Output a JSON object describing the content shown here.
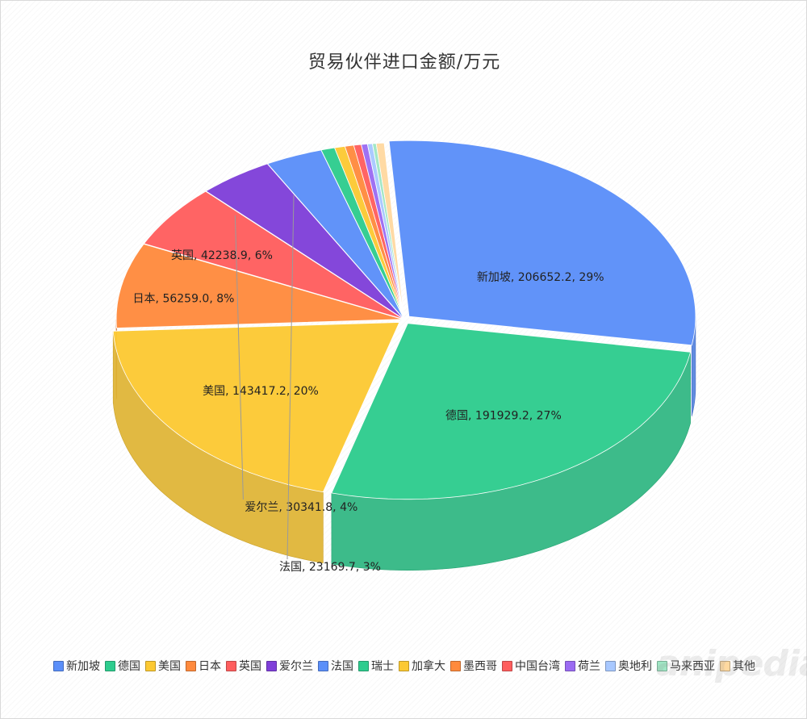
{
  "chart_data": {
    "type": "pie",
    "title": "贸易伙伴进口金额/万元",
    "categories": [
      "新加坡",
      "德国",
      "美国",
      "日本",
      "英国",
      "爱尔兰",
      "法国",
      "瑞士",
      "加拿大",
      "墨西哥",
      "中国台湾",
      "荷兰",
      "奥地利",
      "马来西亚",
      "其他"
    ],
    "values": [
      206652.2,
      191929.2,
      143417.2,
      56259.0,
      42238.9,
      30341.8,
      23169.7,
      5500,
      4200,
      3600,
      3000,
      2500,
      2000,
      1500,
      3200
    ],
    "colors": [
      "#5b8ff9",
      "#2ecc8e",
      "#fcc933",
      "#ff8a3d",
      "#ff5e5e",
      "#7f3fd9",
      "#5b8ff9",
      "#2ecc8e",
      "#fcc933",
      "#ff8a3d",
      "#ff5e5e",
      "#9b6bf2",
      "#a8c8ff",
      "#9fe6c4",
      "#ffd9a0"
    ],
    "data_labels": [
      "新加坡, 206652.2, 29%",
      "德国, 191929.2, 27%",
      "美国, 143417.2, 20%",
      "日本, 56259.0, 8%",
      "英国, 42238.9, 6%",
      "爱尔兰, 30341.8, 4%",
      "法国, 23169.7, 3%",
      "",
      "",
      "",
      "",
      "",
      "",
      "",
      ""
    ],
    "legend_position": "bottom"
  },
  "watermark_text": "anipedia"
}
